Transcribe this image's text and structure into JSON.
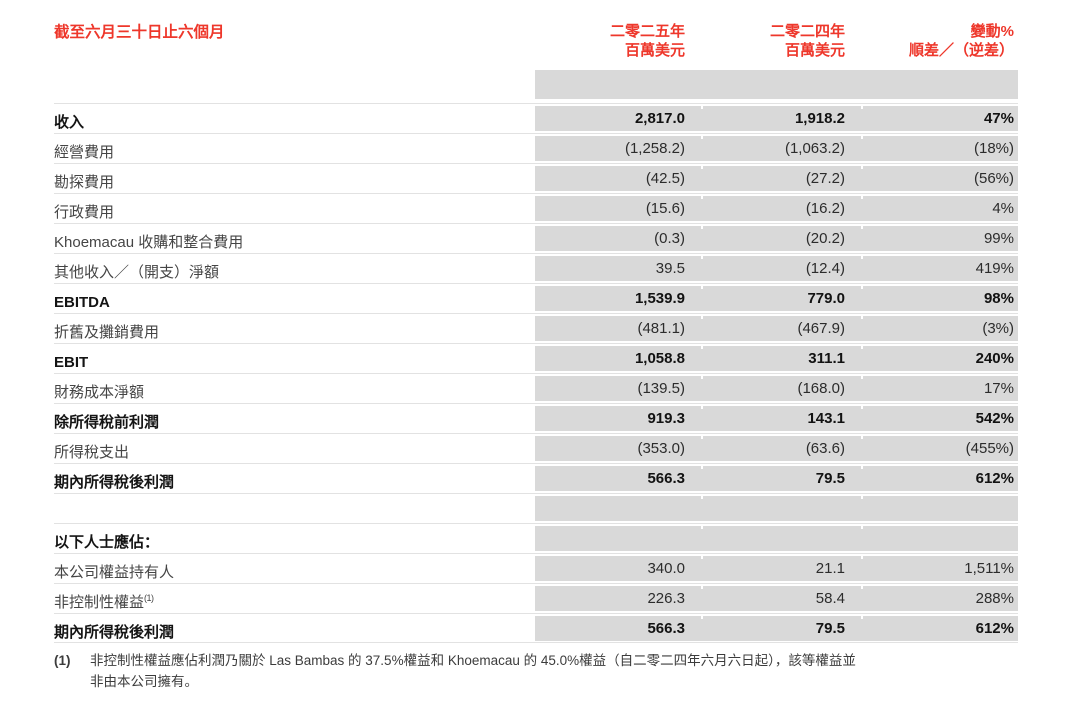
{
  "colors": {
    "accent_red": "#ee372b",
    "cell_gray": "#d9d9d9"
  },
  "header": {
    "title": "截至六月三十日止六個月",
    "columns": [
      {
        "line1": "二零二五年",
        "line2": "百萬美元"
      },
      {
        "line1": "二零二四年",
        "line2": "百萬美元"
      },
      {
        "line1": "變動%",
        "line2": "順差／（逆差）"
      }
    ]
  },
  "table": {
    "rows": [
      {
        "label": "收入",
        "v2025": "2,817.0",
        "v2024": "1,918.2",
        "change": "47%",
        "bold": true
      },
      {
        "label": "經營費用",
        "v2025": "(1,258.2)",
        "v2024": "(1,063.2)",
        "change": "(18%)",
        "bold": false
      },
      {
        "label": "勘探費用",
        "v2025": "(42.5)",
        "v2024": "(27.2)",
        "change": "(56%)",
        "bold": false
      },
      {
        "label": "行政費用",
        "v2025": "(15.6)",
        "v2024": "(16.2)",
        "change": "4%",
        "bold": false
      },
      {
        "label": "Khoemacau 收購和整合費用",
        "v2025": "(0.3)",
        "v2024": "(20.2)",
        "change": "99%",
        "bold": false
      },
      {
        "label": "其他收入／（開支）淨額",
        "v2025": "39.5",
        "v2024": "(12.4)",
        "change": "419%",
        "bold": false
      },
      {
        "label": "EBITDA",
        "v2025": "1,539.9",
        "v2024": "779.0",
        "change": "98%",
        "bold": true
      },
      {
        "label": "折舊及攤銷費用",
        "v2025": "(481.1)",
        "v2024": "(467.9)",
        "change": "(3%)",
        "bold": false
      },
      {
        "label": "EBIT",
        "v2025": "1,058.8",
        "v2024": "311.1",
        "change": "240%",
        "bold": true
      },
      {
        "label": "財務成本淨額",
        "v2025": "(139.5)",
        "v2024": "(168.0)",
        "change": "17%",
        "bold": false
      },
      {
        "label": "除所得稅前利潤",
        "v2025": "919.3",
        "v2024": "143.1",
        "change": "542%",
        "bold": true
      },
      {
        "label": "所得稅支出",
        "v2025": "(353.0)",
        "v2024": "(63.6)",
        "change": "(455%)",
        "bold": false
      },
      {
        "label": "期內所得稅後利潤",
        "v2025": "566.3",
        "v2024": "79.5",
        "change": "612%",
        "bold": true
      },
      {
        "label": "",
        "v2025": "",
        "v2024": "",
        "change": "",
        "bold": false,
        "spacer": true
      },
      {
        "label": "以下人士應佔：",
        "v2025": "",
        "v2024": "",
        "change": "",
        "bold": true
      },
      {
        "label": "本公司權益持有人",
        "v2025": "340.0",
        "v2024": "21.1",
        "change": "1,511%",
        "bold": false
      },
      {
        "label": "非控制性權益",
        "sup": "(1)",
        "v2025": "226.3",
        "v2024": "58.4",
        "change": "288%",
        "bold": false
      },
      {
        "label": "期內所得稅後利潤",
        "v2025": "566.3",
        "v2024": "79.5",
        "change": "612%",
        "bold": true
      }
    ]
  },
  "footnote": {
    "marker": "(1)",
    "text": "非控制性權益應佔利潤乃關於 Las Bambas 的 37.5%權益和 Khoemacau 的 45.0%權益（自二零二四年六月六日起），該等權益並\n非由本公司擁有。"
  }
}
